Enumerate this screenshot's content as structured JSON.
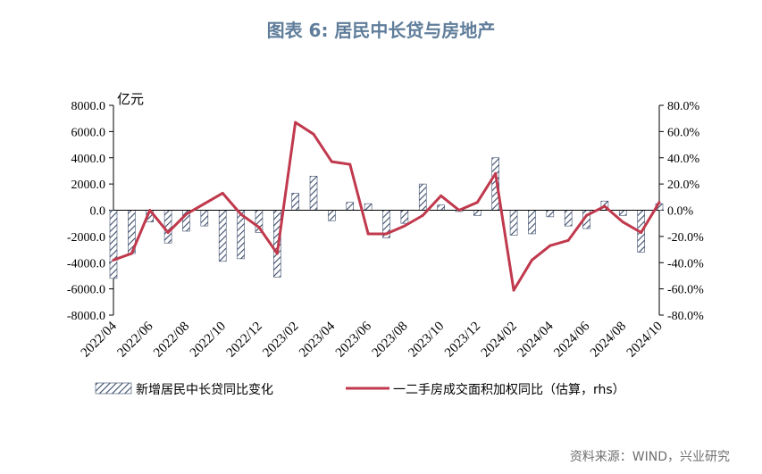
{
  "title": "图表 6: 居民中长贷与房地产",
  "source": "资料来源：WIND，兴业研究",
  "colors": {
    "title": "#5f7d9a",
    "source": "#6f6f6f",
    "bar": "#3b4b6b",
    "line": "#c0394d"
  },
  "chart_data": {
    "type": "bar+line",
    "left_unit_label": "亿元",
    "y_left": {
      "min": -8000,
      "max": 8000,
      "step": 2000,
      "ticks": [
        "8000.0",
        "6000.0",
        "4000.0",
        "2000.0",
        "0.0",
        "-2000.0",
        "-4000.0",
        "-6000.0",
        "-8000.0"
      ]
    },
    "y_right": {
      "min": -80,
      "max": 80,
      "step": 20,
      "ticks": [
        "80.0%",
        "60.0%",
        "40.0%",
        "20.0%",
        "0.0%",
        "-20.0%",
        "-40.0%",
        "-60.0%",
        "-80.0%"
      ]
    },
    "x_categories": [
      "2022/04",
      "2022/05",
      "2022/06",
      "2022/07",
      "2022/08",
      "2022/09",
      "2022/10",
      "2022/11",
      "2022/12",
      "2023/01",
      "2023/02",
      "2023/03",
      "2023/04",
      "2023/05",
      "2023/06",
      "2023/07",
      "2023/08",
      "2023/09",
      "2023/10",
      "2023/11",
      "2023/12",
      "2024/01",
      "2024/02",
      "2024/03",
      "2024/04",
      "2024/05",
      "2024/06",
      "2024/07",
      "2024/08",
      "2024/09",
      "2024/10"
    ],
    "x_tick_labels": [
      "2022/04",
      "2022/06",
      "2022/08",
      "2022/10",
      "2022/12",
      "2023/02",
      "2023/04",
      "2023/06",
      "2023/08",
      "2023/10",
      "2023/12",
      "2024/02",
      "2024/04",
      "2024/06",
      "2024/08",
      "2024/10"
    ],
    "series": [
      {
        "name": "新增居民中长贷同比变化",
        "type": "bar",
        "axis": "left",
        "values": [
          -5200,
          -3300,
          -900,
          -2500,
          -1600,
          -1200,
          -3900,
          -3700,
          -1700,
          -5100,
          1300,
          2600,
          -800,
          600,
          500,
          -2100,
          -1000,
          2000,
          400,
          -100,
          -400,
          4000,
          -1900,
          -1800,
          -500,
          -1200,
          -1400,
          700,
          -400,
          -3200,
          500
        ]
      },
      {
        "name": "一二手房成交面积加权同比（估算，rhs）",
        "type": "line",
        "axis": "right",
        "values": [
          -38,
          -33,
          0,
          -17,
          -3,
          5,
          13,
          -3,
          -13,
          -33,
          67,
          58,
          37,
          35,
          -18,
          -18,
          -12,
          -4,
          11,
          0,
          6,
          28,
          -61,
          -38,
          -27,
          -23,
          -4,
          3,
          -9,
          -17,
          6
        ]
      }
    ],
    "grid": false,
    "legend_position": "bottom"
  }
}
